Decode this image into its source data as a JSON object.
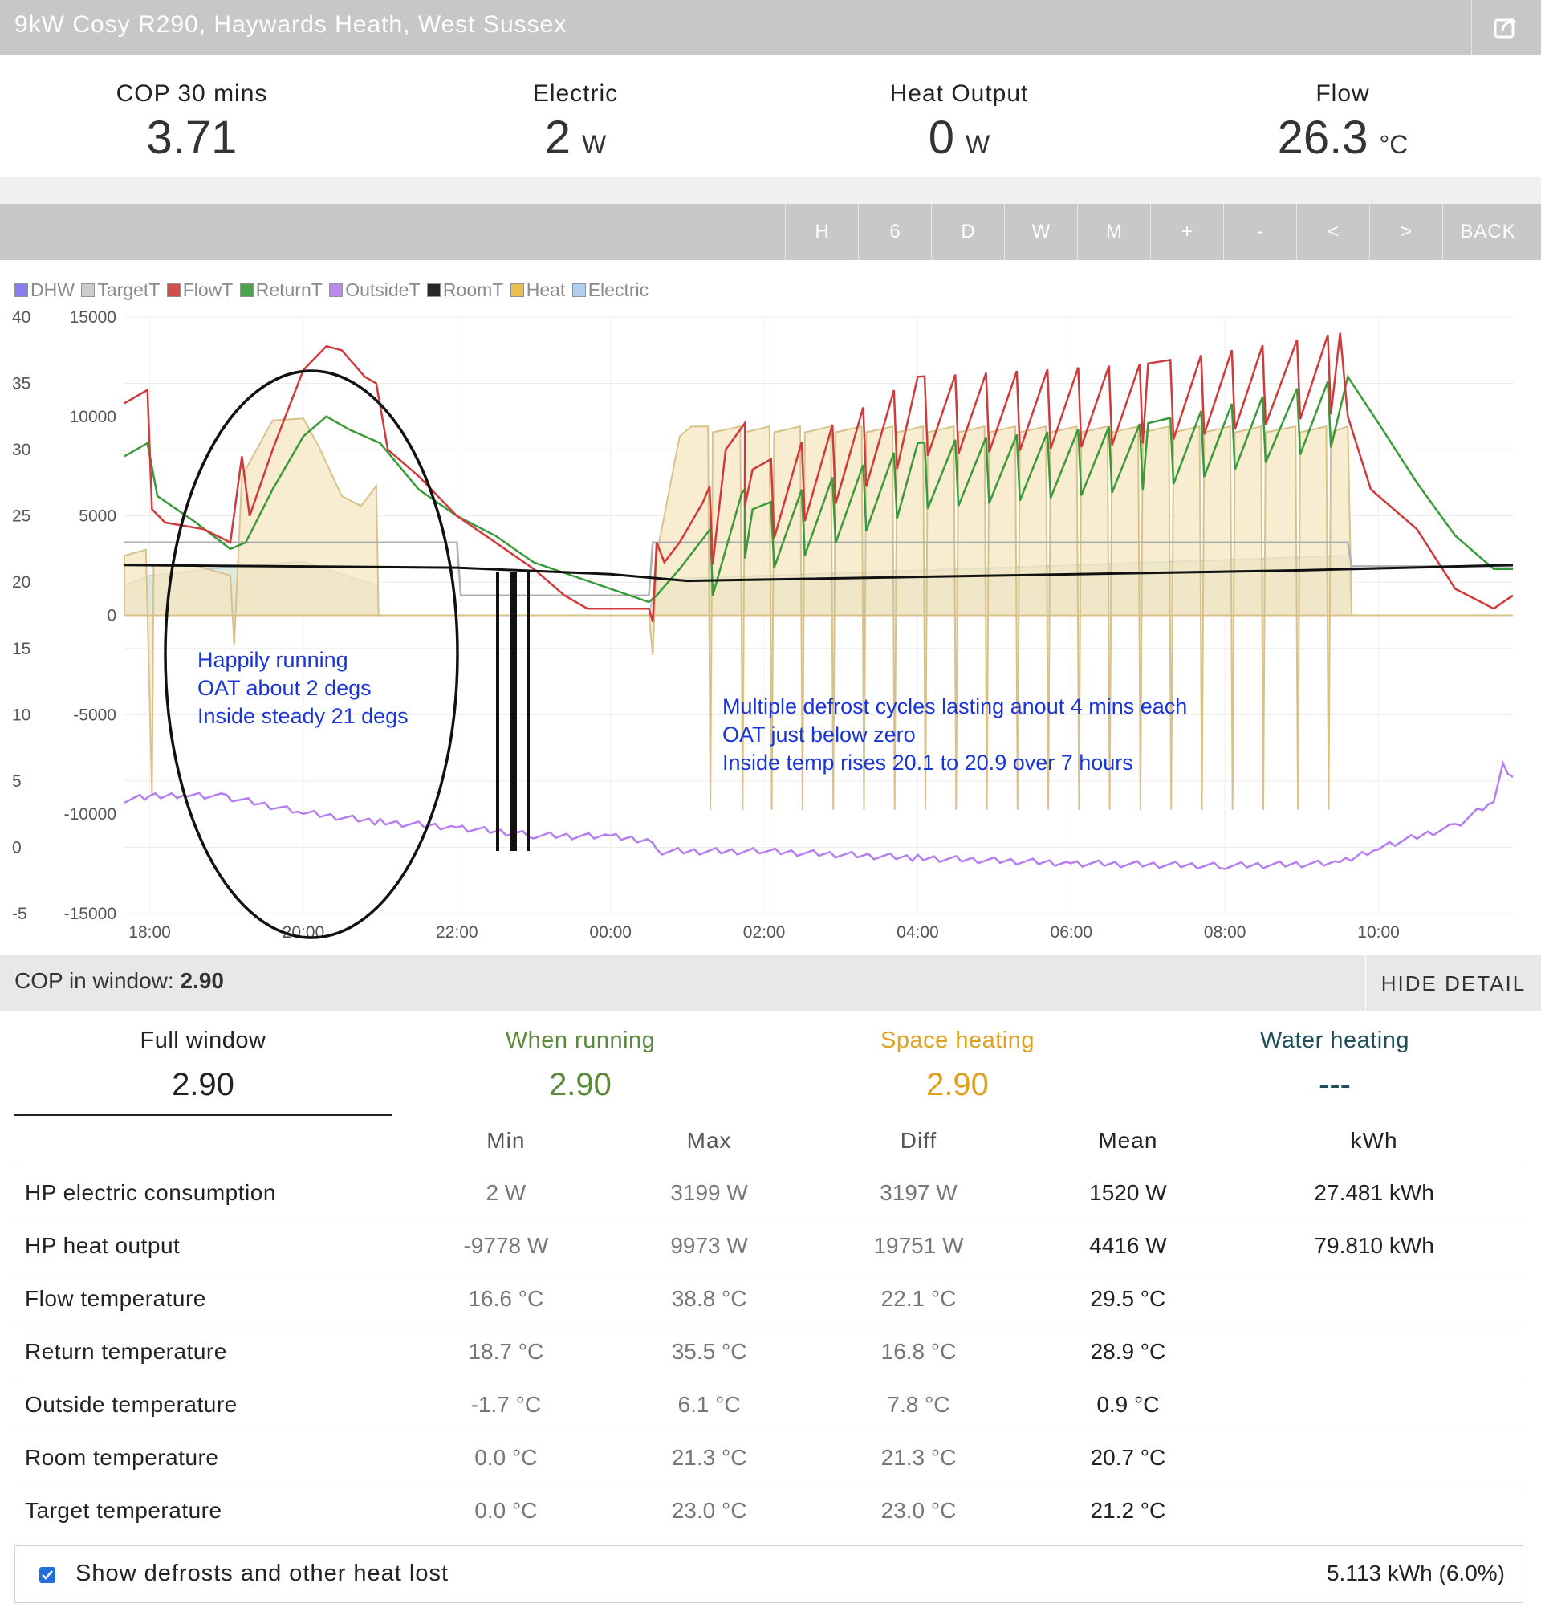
{
  "header": {
    "title": "9kW Cosy R290, Haywards Heath, West Sussex",
    "share_icon": "share-icon"
  },
  "stats": [
    {
      "label": "COP 30 mins",
      "value": "3.71",
      "unit": ""
    },
    {
      "label": "Electric",
      "value": "2",
      "unit": "W"
    },
    {
      "label": "Heat Output",
      "value": "0",
      "unit": "W"
    },
    {
      "label": "Flow",
      "value": "26.3",
      "unit": "°C"
    }
  ],
  "toolbar": {
    "buttons": [
      "H",
      "6",
      "D",
      "W",
      "M",
      "+",
      "-",
      "<",
      ">",
      "BACK"
    ]
  },
  "legend": [
    {
      "label": "DHW",
      "color": "#7b6ff0"
    },
    {
      "label": "TargetT",
      "color": "#c8c8c8"
    },
    {
      "label": "FlowT",
      "color": "#d03a3a"
    },
    {
      "label": "ReturnT",
      "color": "#3a9a3a"
    },
    {
      "label": "OutsideT",
      "color": "#b57ef0"
    },
    {
      "label": "RoomT",
      "color": "#111111"
    },
    {
      "label": "Heat",
      "color": "#e8b840"
    },
    {
      "label": "Electric",
      "color": "#a9ccf0"
    }
  ],
  "chart_data": {
    "type": "line",
    "x_ticks": [
      "18:00",
      "20:00",
      "22:00",
      "00:00",
      "02:00",
      "04:00",
      "06:00",
      "08:00",
      "10:00"
    ],
    "x_range_hours": [
      17.67,
      35.75
    ],
    "y_left_ticks": [
      "40",
      "35",
      "30",
      "25",
      "20",
      "15",
      "10",
      "5",
      "0",
      "-5"
    ],
    "y_left_range": [
      -5,
      40
    ],
    "y_right_ticks": [
      "15000",
      "10000",
      "5000",
      "0",
      "-5000",
      "-10000",
      "-15000"
    ],
    "y_right_range": [
      -15000,
      15000
    ],
    "grid": true,
    "legend_position": "top-left",
    "series": [
      {
        "name": "FlowT",
        "axis": "left",
        "color": "#d03a3a",
        "points": [
          [
            17.67,
            33.5
          ],
          [
            17.97,
            34.5
          ],
          [
            18.03,
            25.5
          ],
          [
            18.2,
            24.5
          ],
          [
            18.7,
            24.0
          ],
          [
            19.05,
            23.0
          ],
          [
            19.2,
            29.5
          ],
          [
            19.3,
            25.0
          ],
          [
            19.6,
            30.0
          ],
          [
            20.0,
            36.0
          ],
          [
            20.3,
            37.8
          ],
          [
            20.5,
            37.5
          ],
          [
            20.8,
            35.5
          ],
          [
            20.95,
            35.0
          ],
          [
            21.1,
            30.0
          ],
          [
            21.5,
            28.0
          ],
          [
            22.0,
            25.0
          ],
          [
            22.5,
            23.0
          ],
          [
            23.0,
            21.0
          ],
          [
            23.4,
            19.0
          ],
          [
            23.7,
            18.0
          ],
          [
            24.5,
            18.0
          ],
          [
            24.55,
            17.0
          ],
          [
            24.6,
            23.0
          ],
          [
            24.7,
            21.5
          ],
          [
            24.9,
            23.0
          ],
          [
            25.2,
            26.0
          ],
          [
            25.5,
            30.0
          ],
          [
            25.75,
            32.0
          ],
          [
            25.85,
            28.5
          ],
          [
            28.0,
            35.5
          ],
          [
            31.0,
            36.5
          ],
          [
            33.5,
            38.8
          ],
          [
            33.6,
            32.5
          ],
          [
            33.9,
            27.0
          ],
          [
            34.5,
            24.0
          ],
          [
            35.0,
            19.5
          ],
          [
            35.5,
            18.0
          ],
          [
            35.75,
            19.0
          ]
        ]
      },
      {
        "name": "ReturnT",
        "axis": "left",
        "color": "#3a9a3a",
        "points": [
          [
            17.67,
            29.5
          ],
          [
            17.97,
            30.5
          ],
          [
            18.1,
            26.5
          ],
          [
            18.6,
            24.5
          ],
          [
            19.05,
            22.5
          ],
          [
            19.25,
            23.0
          ],
          [
            19.6,
            27.0
          ],
          [
            20.0,
            31.0
          ],
          [
            20.3,
            32.5
          ],
          [
            20.6,
            31.5
          ],
          [
            21.0,
            30.5
          ],
          [
            21.5,
            27.0
          ],
          [
            22.0,
            25.0
          ],
          [
            22.5,
            23.5
          ],
          [
            23.0,
            21.5
          ],
          [
            23.5,
            20.5
          ],
          [
            24.5,
            18.5
          ],
          [
            24.6,
            19.0
          ],
          [
            24.9,
            21.0
          ],
          [
            25.3,
            24.0
          ],
          [
            25.75,
            27.0
          ],
          [
            25.85,
            25.5
          ],
          [
            28.0,
            30.5
          ],
          [
            31.0,
            32.0
          ],
          [
            33.6,
            35.5
          ],
          [
            34.0,
            32.0
          ],
          [
            34.5,
            27.5
          ],
          [
            35.0,
            23.5
          ],
          [
            35.5,
            21.0
          ],
          [
            35.75,
            21.0
          ]
        ]
      },
      {
        "name": "RoomT",
        "axis": "left",
        "color": "#111111",
        "points": [
          [
            17.67,
            21.3
          ],
          [
            22.0,
            21.1
          ],
          [
            24.0,
            20.6
          ],
          [
            25.0,
            20.1
          ],
          [
            29.0,
            20.5
          ],
          [
            33.0,
            20.9
          ],
          [
            35.75,
            21.3
          ]
        ]
      },
      {
        "name": "OutsideT",
        "axis": "left",
        "color": "#b57ef0",
        "points": [
          [
            17.67,
            3.6
          ],
          [
            18.0,
            3.8
          ],
          [
            18.5,
            4.0
          ],
          [
            19.0,
            3.8
          ],
          [
            20.0,
            2.6
          ],
          [
            21.0,
            1.9
          ],
          [
            22.0,
            1.5
          ],
          [
            23.0,
            0.9
          ],
          [
            24.0,
            0.8
          ],
          [
            24.55,
            0.5
          ],
          [
            24.6,
            -0.3
          ],
          [
            26.0,
            -0.3
          ],
          [
            28.0,
            -0.8
          ],
          [
            30.0,
            -1.2
          ],
          [
            32.0,
            -1.4
          ],
          [
            33.5,
            -1.2
          ],
          [
            34.0,
            0.0
          ],
          [
            35.0,
            1.6
          ],
          [
            35.5,
            3.5
          ],
          [
            35.62,
            6.1
          ],
          [
            35.75,
            5.3
          ]
        ]
      },
      {
        "name": "TargetT",
        "axis": "left",
        "color": "#c8c8c8",
        "points": [
          [
            17.67,
            23.0
          ],
          [
            22.0,
            23.0
          ],
          [
            22.05,
            19.0
          ],
          [
            24.5,
            19.0
          ],
          [
            24.55,
            23.0
          ],
          [
            33.6,
            23.0
          ],
          [
            33.65,
            21.2
          ],
          [
            35.75,
            21.2
          ]
        ]
      },
      {
        "name": "Heat",
        "axis": "right",
        "color": "#e8b840",
        "note_units": "W",
        "points": [
          [
            17.67,
            3000
          ],
          [
            17.95,
            3300
          ],
          [
            18.03,
            -9000
          ],
          [
            18.05,
            2500
          ],
          [
            18.6,
            2500
          ],
          [
            19.05,
            2000
          ],
          [
            19.1,
            -1500
          ],
          [
            19.2,
            7000
          ],
          [
            19.6,
            9800
          ],
          [
            20.0,
            9900
          ],
          [
            20.2,
            8500
          ],
          [
            20.5,
            6000
          ],
          [
            20.75,
            5500
          ],
          [
            20.95,
            6500
          ],
          [
            20.98,
            0
          ],
          [
            24.5,
            0
          ],
          [
            24.55,
            -2000
          ],
          [
            24.6,
            3000
          ],
          [
            24.9,
            9000
          ],
          [
            25.05,
            9500
          ],
          [
            33.6,
            9500
          ],
          [
            33.65,
            0
          ],
          [
            35.75,
            0
          ]
        ],
        "defrost_dips_h": [
          25.3,
          25.72,
          26.1,
          26.5,
          26.9,
          27.3,
          27.7,
          28.1,
          28.5,
          28.9,
          29.3,
          29.7,
          30.1,
          30.5,
          30.9,
          31.3,
          31.7,
          32.1,
          32.5,
          32.95,
          33.35
        ],
        "defrost_min_w": -9778
      },
      {
        "name": "Electric",
        "axis": "right",
        "color": "#a9ccf0",
        "note_units": "W",
        "points": [
          [
            17.67,
            1500
          ],
          [
            18.0,
            2000
          ],
          [
            19.2,
            2500
          ],
          [
            20.0,
            2700
          ],
          [
            20.95,
            1500
          ],
          [
            20.98,
            0
          ],
          [
            24.5,
            0
          ],
          [
            24.6,
            1800
          ],
          [
            33.6,
            3000
          ],
          [
            33.65,
            0
          ],
          [
            35.75,
            0
          ]
        ]
      }
    ],
    "annotations": [
      [
        "Happily running",
        "OAT about 2 degs",
        "Inside steady 21 degs"
      ],
      [
        "Multiple defrost cycles lasting anout 4 mins each",
        "OAT just below zero",
        "Inside temp rises 20.1 to 20.9 over 7 hours"
      ]
    ],
    "annotation_color": "#1a35d6"
  },
  "cop_window": {
    "label": "COP in window:",
    "value": "2.90",
    "hide_label": "HIDE DETAIL"
  },
  "tabs": [
    {
      "label": "Full window",
      "value": "2.90",
      "color": "#222222"
    },
    {
      "label": "When running",
      "value": "2.90",
      "color": "#5a8a3a"
    },
    {
      "label": "Space heating",
      "value": "2.90",
      "color": "#e0a020"
    },
    {
      "label": "Water heating",
      "value": "---",
      "color": "#1f4f5a"
    }
  ],
  "table": {
    "headers": [
      "",
      "Min",
      "Max",
      "Diff",
      "Mean",
      "kWh"
    ],
    "rows": [
      [
        "HP electric consumption",
        "2 W",
        "3199 W",
        "3197 W",
        "1520 W",
        "27.481 kWh"
      ],
      [
        "HP heat output",
        "-9778 W",
        "9973 W",
        "19751 W",
        "4416 W",
        "79.810 kWh"
      ],
      [
        "Flow temperature",
        "16.6 °C",
        "38.8 °C",
        "22.1 °C",
        "29.5 °C",
        ""
      ],
      [
        "Return temperature",
        "18.7 °C",
        "35.5 °C",
        "16.8 °C",
        "28.9 °C",
        ""
      ],
      [
        "Outside temperature",
        "-1.7 °C",
        "6.1 °C",
        "7.8 °C",
        "0.9 °C",
        ""
      ],
      [
        "Room temperature",
        "0.0 °C",
        "21.3 °C",
        "21.3 °C",
        "20.7 °C",
        ""
      ],
      [
        "Target temperature",
        "0.0 °C",
        "23.0 °C",
        "23.0 °C",
        "21.2 °C",
        ""
      ]
    ]
  },
  "defrost": {
    "label": "Show defrosts and other heat lost",
    "checked": true,
    "value": "5.113 kWh (6.0%)"
  }
}
